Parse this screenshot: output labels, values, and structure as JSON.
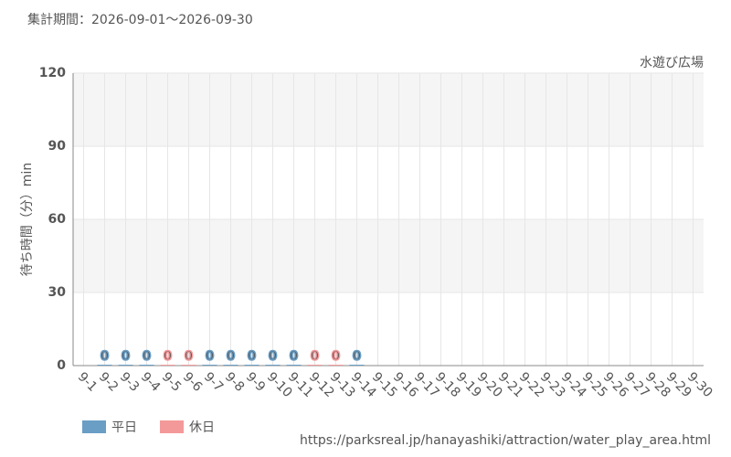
{
  "chart_data": {
    "type": "bar",
    "title": "集計期間：2026-09-01～2026-09-30",
    "subtitle": "水遊び広場",
    "y_label": "待ち時間（分）min",
    "source": "https://parksreal.jp/hanayashiki/attraction/water_play_area.html",
    "categories": [
      "9-1",
      "9-2",
      "9-3",
      "9-4",
      "9-5",
      "9-6",
      "9-7",
      "9-8",
      "9-9",
      "9-10",
      "9-11",
      "9-12",
      "9-13",
      "9-14",
      "9-15",
      "9-16",
      "9-17",
      "9-18",
      "9-19",
      "9-20",
      "9-21",
      "9-22",
      "9-23",
      "9-24",
      "9-25",
      "9-26",
      "9-27",
      "9-28",
      "9-29",
      "9-30"
    ],
    "category_colors": [
      "#555",
      "#555",
      "#555",
      "#555",
      "#f08a8a",
      "#f08a8a",
      "#555",
      "#555",
      "#555",
      "#555",
      "#555",
      "#f08a8a",
      "#f08a8a",
      "#555",
      "#555",
      "#555",
      "#555",
      "#555",
      "#f08a8a",
      "#f08a8a",
      "#f08a8a",
      "#f08a8a",
      "#f08a8a",
      "#555",
      "#555",
      "#f08a8a",
      "#f08a8a",
      "#555",
      "#555",
      "#555"
    ],
    "series": [
      {
        "name": "平日",
        "color": "#6a9ec5",
        "values": [
          null,
          0,
          0,
          0,
          null,
          null,
          0,
          0,
          0,
          0,
          0,
          null,
          null,
          0,
          null,
          null,
          null,
          null,
          null,
          null,
          null,
          null,
          null,
          null,
          null,
          null,
          null,
          null,
          null,
          null
        ]
      },
      {
        "name": "休日",
        "color": "#f4999a",
        "values": [
          null,
          null,
          null,
          null,
          0,
          0,
          null,
          null,
          null,
          null,
          null,
          0,
          0,
          null,
          null,
          null,
          null,
          null,
          null,
          null,
          null,
          null,
          null,
          null,
          null,
          null,
          null,
          null,
          null,
          null
        ]
      }
    ],
    "ylim": [
      0,
      120
    ],
    "yticks": [
      0,
      30,
      60,
      90,
      120
    ],
    "grid": true,
    "legend": "bottom-left"
  }
}
